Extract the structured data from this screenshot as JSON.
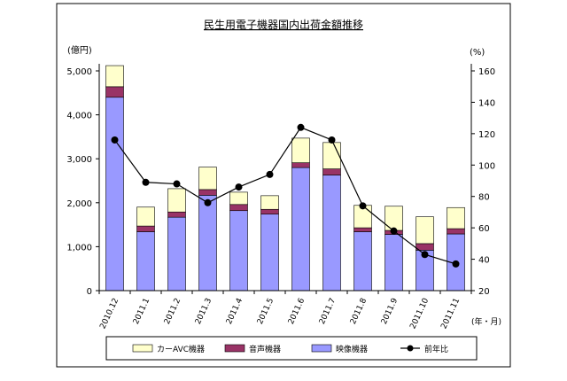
{
  "chart_data": {
    "type": "bar",
    "stacked": true,
    "title": "民生用電子機器国内出荷金額推移",
    "y_left_unit": "(億円)",
    "y_right_unit": "(%)",
    "x_unit": "(年・月)",
    "categories": [
      "2010.12",
      "2011.1",
      "2011.2",
      "2011.3",
      "2011.4",
      "2011.5",
      "2011.6",
      "2011.7",
      "2011.8",
      "2011.9",
      "2011.10",
      "2011.11"
    ],
    "y_left_ticks": [
      "0",
      "1,000",
      "2,000",
      "3,000",
      "4,000",
      "5,000"
    ],
    "y_right_ticks": [
      "20",
      "40",
      "60",
      "80",
      "100",
      "120",
      "140",
      "160"
    ],
    "ylim_left": [
      0,
      5000
    ],
    "ylim_right": [
      20,
      160
    ],
    "series": [
      {
        "name": "映像機器",
        "color": "#9999ff",
        "values": [
          4400,
          1340,
          1670,
          2170,
          1820,
          1740,
          2800,
          2630,
          1340,
          1280,
          920,
          1290
        ]
      },
      {
        "name": "音声機器",
        "color": "#993366",
        "values": [
          240,
          130,
          120,
          130,
          140,
          110,
          110,
          140,
          90,
          90,
          150,
          120
        ]
      },
      {
        "name": "カーAVC機器",
        "color": "#ffffcc",
        "values": [
          480,
          430,
          530,
          510,
          280,
          310,
          560,
          600,
          510,
          550,
          610,
          480
        ]
      },
      {
        "name": "前年比",
        "type": "line",
        "axis": "right",
        "color": "#000000",
        "values": [
          116,
          89,
          88,
          76,
          86,
          94,
          124,
          116,
          74,
          58,
          43,
          37
        ]
      }
    ],
    "legend": {
      "placement": "bottom",
      "items": [
        "カーAVC機器",
        "音声機器",
        "映像機器",
        "前年比"
      ]
    }
  }
}
